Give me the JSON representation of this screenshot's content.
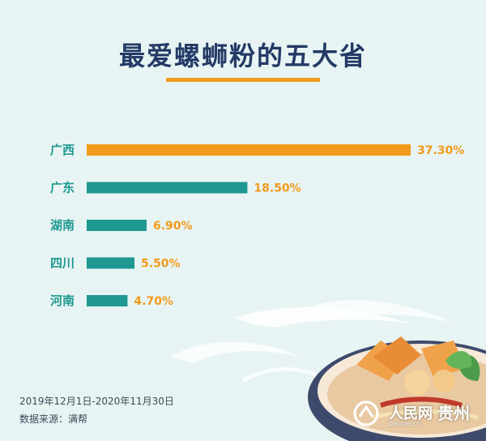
{
  "header": {
    "title": "最爱螺蛳粉的五大省"
  },
  "colors": {
    "background": "#e7f4f3",
    "title": "#233a66",
    "accent_orange": "#f39a1b",
    "bar_teal": "#1e9890"
  },
  "chart_data": {
    "type": "bar",
    "orientation": "horizontal",
    "categories": [
      "广西",
      "广东",
      "湖南",
      "四川",
      "河南"
    ],
    "values": [
      37.3,
      18.5,
      6.9,
      5.5,
      4.7
    ],
    "value_labels": [
      "37.30%",
      "18.50%",
      "6.90%",
      "5.50%",
      "4.70%"
    ],
    "highlight_index": 0,
    "xlabel": "",
    "ylabel": "",
    "xlim": [
      0,
      37.3
    ],
    "grid": false,
    "legend": "none"
  },
  "footer": {
    "date_range": "2019年12月1日-2020年11月30日",
    "source": "数据来源：满帮"
  },
  "watermark": {
    "brand": "人民网",
    "brand_sub": "people.cn",
    "city": "贵州"
  }
}
